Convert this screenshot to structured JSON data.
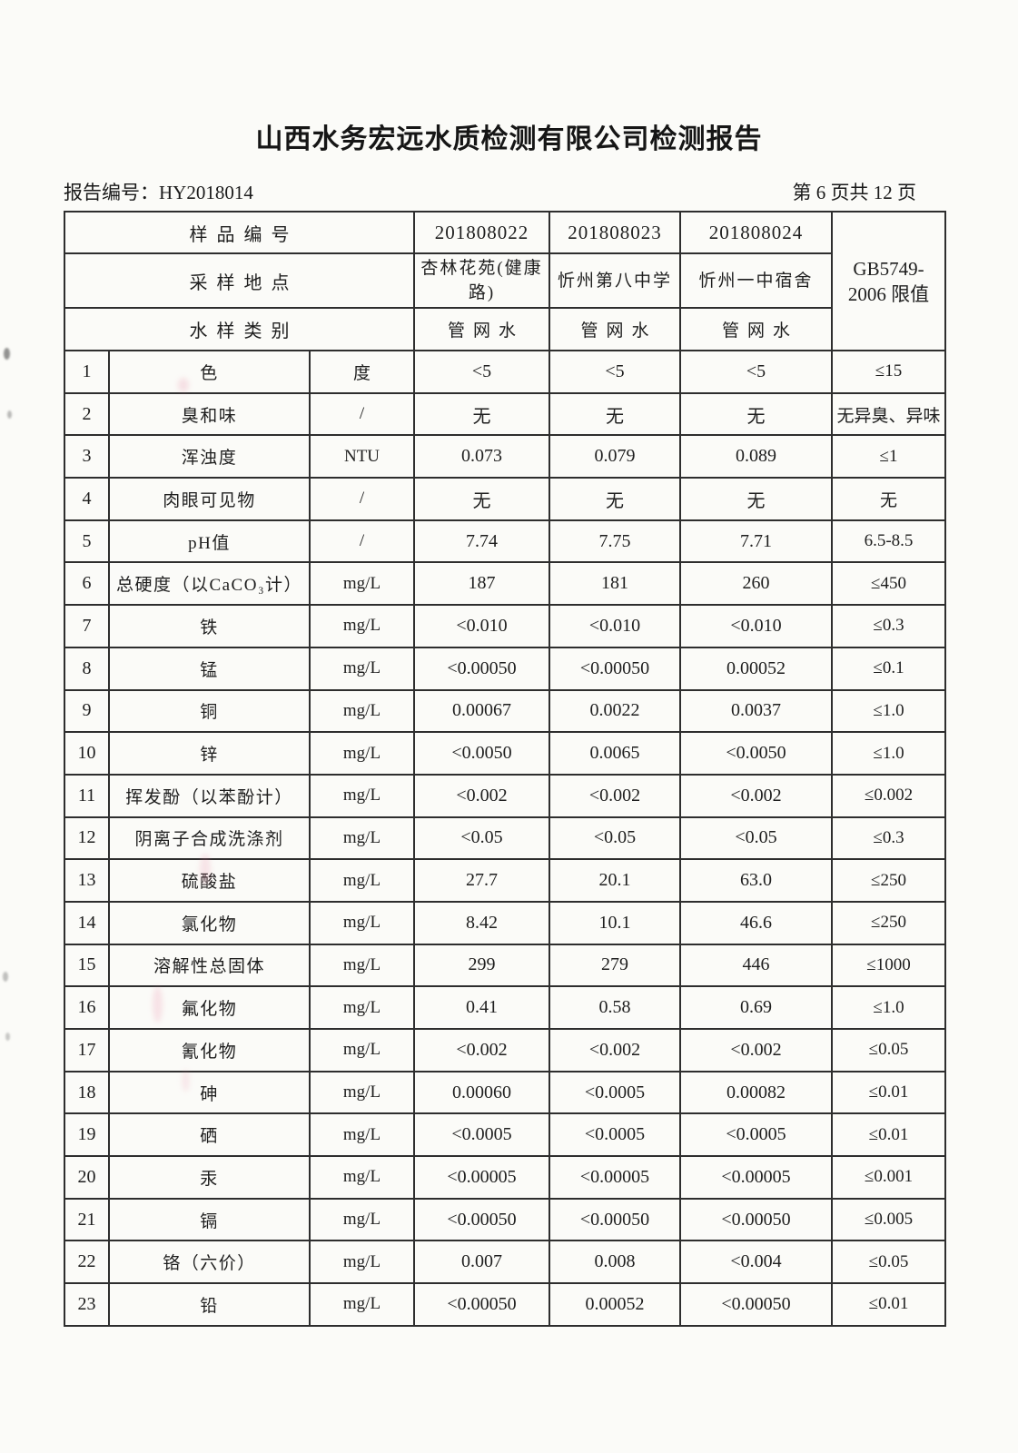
{
  "page": {
    "title": "山西水务宏远水质检测有限公司检测报告",
    "report_no": "报告编号：HY2018014",
    "page_indicator": "第 6 页共 12 页"
  },
  "table": {
    "header": {
      "sample_no_label": "样品编号",
      "location_label": "采样地点",
      "type_label": "水样类别",
      "limit_line1": "GB5749-",
      "limit_line2": "2006 限值",
      "samples": [
        {
          "no": "201808022",
          "location": "杏林花苑(健康路)",
          "type": "管网水"
        },
        {
          "no": "201808023",
          "location": "忻州第八中学",
          "type": "管网水"
        },
        {
          "no": "201808024",
          "location": "忻州一中宿舍",
          "type": "管网水"
        }
      ]
    },
    "rows": [
      {
        "idx": "1",
        "name": "色",
        "unit": "度",
        "v1": "<5",
        "v2": "<5",
        "v3": "<5",
        "limit": "≤15"
      },
      {
        "idx": "2",
        "name": "臭和味",
        "unit": "/",
        "v1": "无",
        "v2": "无",
        "v3": "无",
        "limit": "无异臭、异味"
      },
      {
        "idx": "3",
        "name": "浑浊度",
        "unit": "NTU",
        "v1": "0.073",
        "v2": "0.079",
        "v3": "0.089",
        "limit": "≤1"
      },
      {
        "idx": "4",
        "name": "肉眼可见物",
        "unit": "/",
        "v1": "无",
        "v2": "无",
        "v3": "无",
        "limit": "无"
      },
      {
        "idx": "5",
        "name": "pH值",
        "unit": "/",
        "v1": "7.74",
        "v2": "7.75",
        "v3": "7.71",
        "limit": "6.5-8.5"
      },
      {
        "idx": "6",
        "name": "总硬度（以CaCO₃计）",
        "unit": "mg/L",
        "v1": "187",
        "v2": "181",
        "v3": "260",
        "limit": "≤450"
      },
      {
        "idx": "7",
        "name": "铁",
        "unit": "mg/L",
        "v1": "<0.010",
        "v2": "<0.010",
        "v3": "<0.010",
        "limit": "≤0.3"
      },
      {
        "idx": "8",
        "name": "锰",
        "unit": "mg/L",
        "v1": "<0.00050",
        "v2": "<0.00050",
        "v3": "0.00052",
        "limit": "≤0.1"
      },
      {
        "idx": "9",
        "name": "铜",
        "unit": "mg/L",
        "v1": "0.00067",
        "v2": "0.0022",
        "v3": "0.0037",
        "limit": "≤1.0"
      },
      {
        "idx": "10",
        "name": "锌",
        "unit": "mg/L",
        "v1": "<0.0050",
        "v2": "0.0065",
        "v3": "<0.0050",
        "limit": "≤1.0"
      },
      {
        "idx": "11",
        "name": "挥发酚（以苯酚计）",
        "unit": "mg/L",
        "v1": "<0.002",
        "v2": "<0.002",
        "v3": "<0.002",
        "limit": "≤0.002"
      },
      {
        "idx": "12",
        "name": "阴离子合成洗涤剂",
        "unit": "mg/L",
        "v1": "<0.05",
        "v2": "<0.05",
        "v3": "<0.05",
        "limit": "≤0.3"
      },
      {
        "idx": "13",
        "name": "硫酸盐",
        "unit": "mg/L",
        "v1": "27.7",
        "v2": "20.1",
        "v3": "63.0",
        "limit": "≤250"
      },
      {
        "idx": "14",
        "name": "氯化物",
        "unit": "mg/L",
        "v1": "8.42",
        "v2": "10.1",
        "v3": "46.6",
        "limit": "≤250"
      },
      {
        "idx": "15",
        "name": "溶解性总固体",
        "unit": "mg/L",
        "v1": "299",
        "v2": "279",
        "v3": "446",
        "limit": "≤1000"
      },
      {
        "idx": "16",
        "name": "氟化物",
        "unit": "mg/L",
        "v1": "0.41",
        "v2": "0.58",
        "v3": "0.69",
        "limit": "≤1.0"
      },
      {
        "idx": "17",
        "name": "氰化物",
        "unit": "mg/L",
        "v1": "<0.002",
        "v2": "<0.002",
        "v3": "<0.002",
        "limit": "≤0.05"
      },
      {
        "idx": "18",
        "name": "砷",
        "unit": "mg/L",
        "v1": "0.00060",
        "v2": "<0.0005",
        "v3": "0.00082",
        "limit": "≤0.01"
      },
      {
        "idx": "19",
        "name": "硒",
        "unit": "mg/L",
        "v1": "<0.0005",
        "v2": "<0.0005",
        "v3": "<0.0005",
        "limit": "≤0.01"
      },
      {
        "idx": "20",
        "name": "汞",
        "unit": "mg/L",
        "v1": "<0.00005",
        "v2": "<0.00005",
        "v3": "<0.00005",
        "limit": "≤0.001"
      },
      {
        "idx": "21",
        "name": "镉",
        "unit": "mg/L",
        "v1": "<0.00050",
        "v2": "<0.00050",
        "v3": "<0.00050",
        "limit": "≤0.005"
      },
      {
        "idx": "22",
        "name": "铬（六价）",
        "unit": "mg/L",
        "v1": "0.007",
        "v2": "0.008",
        "v3": "<0.004",
        "limit": "≤0.05"
      },
      {
        "idx": "23",
        "name": "铅",
        "unit": "mg/L",
        "v1": "<0.00050",
        "v2": "0.00052",
        "v3": "<0.00050",
        "limit": "≤0.01"
      }
    ]
  }
}
